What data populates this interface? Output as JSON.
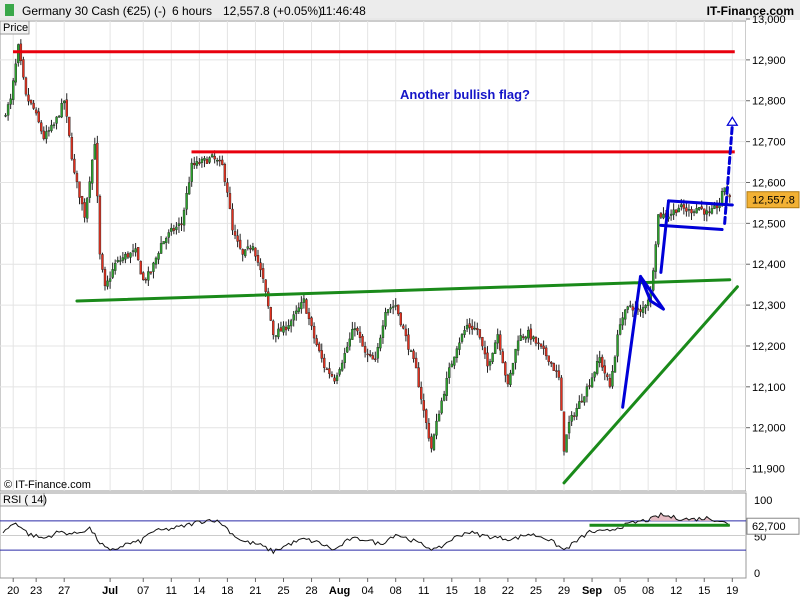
{
  "header": {
    "instrument": "Germany 30 Cash (€25) (-)",
    "timeframe": "6 hours",
    "last_quote": "12,557.8 (+0.05%)",
    "time": "11:46:48",
    "brand": "IT-Finance.com",
    "colors": {
      "up": "#2ca02c",
      "down": "#e0301e"
    }
  },
  "panel_labels": {
    "price": "Price",
    "rsi": "RSI ( 14)"
  },
  "watermark": "© IT-Finance.com",
  "annotation": "Another bullish flag?",
  "chart_data": [
    {
      "type": "candlestick",
      "title": "Germany 30 Cash (€25) (-)",
      "ylim": [
        11850,
        13000
      ],
      "y_ticks": [
        "11,900",
        "12,000",
        "12,100",
        "12,200",
        "12,300",
        "12,400",
        "12,500",
        "12,600",
        "12,700",
        "12,800",
        "12,900",
        "13,000"
      ],
      "y_tick_values": [
        11900,
        12000,
        12100,
        12200,
        12300,
        12400,
        12500,
        12600,
        12700,
        12800,
        12900,
        13000
      ],
      "x_ticks": [
        "20",
        "23",
        "27",
        "Jul",
        "07",
        "11",
        "14",
        "18",
        "21",
        "25",
        "28",
        "Aug",
        "04",
        "08",
        "11",
        "15",
        "18",
        "22",
        "25",
        "29",
        "Sep",
        "05",
        "08",
        "12",
        "15",
        "19"
      ],
      "x_tick_index": [
        4,
        13,
        24,
        42,
        55,
        66,
        77,
        88,
        99,
        110,
        121,
        132,
        143,
        154,
        165,
        176,
        187,
        198,
        209,
        220,
        231,
        242,
        253,
        264,
        275,
        286
      ],
      "last_value_label": "12,557.8",
      "last_value": 12557.8,
      "anchors": [
        [
          0,
          12760
        ],
        [
          3,
          12800
        ],
        [
          6,
          12930
        ],
        [
          9,
          12810
        ],
        [
          12,
          12780
        ],
        [
          16,
          12710
        ],
        [
          20,
          12740
        ],
        [
          24,
          12800
        ],
        [
          28,
          12620
        ],
        [
          32,
          12520
        ],
        [
          36,
          12700
        ],
        [
          38,
          12420
        ],
        [
          40,
          12340
        ],
        [
          44,
          12400
        ],
        [
          48,
          12420
        ],
        [
          52,
          12430
        ],
        [
          55,
          12360
        ],
        [
          58,
          12380
        ],
        [
          62,
          12450
        ],
        [
          66,
          12480
        ],
        [
          70,
          12500
        ],
        [
          74,
          12640
        ],
        [
          78,
          12650
        ],
        [
          82,
          12660
        ],
        [
          86,
          12640
        ],
        [
          88,
          12580
        ],
        [
          90,
          12480
        ],
        [
          94,
          12420
        ],
        [
          98,
          12450
        ],
        [
          102,
          12360
        ],
        [
          106,
          12230
        ],
        [
          110,
          12240
        ],
        [
          114,
          12270
        ],
        [
          118,
          12310
        ],
        [
          122,
          12220
        ],
        [
          126,
          12150
        ],
        [
          130,
          12120
        ],
        [
          134,
          12180
        ],
        [
          138,
          12250
        ],
        [
          142,
          12180
        ],
        [
          146,
          12160
        ],
        [
          150,
          12290
        ],
        [
          154,
          12300
        ],
        [
          158,
          12220
        ],
        [
          162,
          12140
        ],
        [
          165,
          12040
        ],
        [
          168,
          11950
        ],
        [
          171,
          12040
        ],
        [
          175,
          12140
        ],
        [
          178,
          12200
        ],
        [
          182,
          12250
        ],
        [
          186,
          12240
        ],
        [
          190,
          12150
        ],
        [
          194,
          12230
        ],
        [
          198,
          12100
        ],
        [
          202,
          12220
        ],
        [
          206,
          12230
        ],
        [
          210,
          12200
        ],
        [
          214,
          12170
        ],
        [
          218,
          12120
        ],
        [
          220,
          11950
        ],
        [
          222,
          12010
        ],
        [
          226,
          12060
        ],
        [
          230,
          12110
        ],
        [
          234,
          12170
        ],
        [
          238,
          12100
        ],
        [
          242,
          12260
        ],
        [
          246,
          12300
        ],
        [
          250,
          12280
        ],
        [
          254,
          12330
        ],
        [
          257,
          12520
        ],
        [
          261,
          12520
        ],
        [
          265,
          12540
        ],
        [
          269,
          12530
        ],
        [
          273,
          12540
        ],
        [
          277,
          12520
        ],
        [
          281,
          12550
        ],
        [
          283,
          12590
        ],
        [
          285,
          12557.8
        ]
      ],
      "horizontal_lines": [
        {
          "name": "resistance-high",
          "y": 12920,
          "x_from": 0,
          "x_to": 285,
          "color": "#e8000d"
        },
        {
          "name": "resistance-mid",
          "y": 12675,
          "x_from": 70,
          "x_to": 285,
          "color": "#e8000d"
        }
      ],
      "trend_lines": [
        {
          "name": "neckline",
          "points": [
            [
              29,
              12310
            ],
            [
              285,
              12362
            ]
          ],
          "color": "#1a8a1a"
        },
        {
          "name": "rising-support",
          "points": [
            [
              220,
              11865
            ],
            [
              288,
              12345
            ]
          ],
          "color": "#1a8a1a"
        },
        {
          "name": "first-flag-pole",
          "points": [
            [
              243,
              12050
            ],
            [
              250,
              12370
            ]
          ],
          "color": "#0000d8"
        },
        {
          "name": "first-flag-body",
          "points": [
            [
              250,
              12370
            ],
            [
              259,
              12290
            ],
            [
              254,
              12310
            ],
            [
              250,
              12370
            ]
          ],
          "color": "#0000d8"
        },
        {
          "name": "second-flag-pole",
          "points": [
            [
              258,
              12380
            ],
            [
              261,
              12555
            ]
          ],
          "color": "#0000d8"
        },
        {
          "name": "second-flag-top",
          "points": [
            [
              261,
              12555
            ],
            [
              286,
              12545
            ]
          ],
          "color": "#0000d8"
        },
        {
          "name": "second-flag-bottom",
          "points": [
            [
              258,
              12495
            ],
            [
              282,
              12485
            ]
          ],
          "color": "#0000d8"
        },
        {
          "name": "projection",
          "points": [
            [
              283,
              12500
            ],
            [
              286,
              12740
            ]
          ],
          "color": "#0000d8",
          "dashed": true
        }
      ]
    },
    {
      "type": "line",
      "title": "RSI ( 14)",
      "ylim": [
        0,
        100
      ],
      "y_ticks": [
        "0",
        "50",
        "100"
      ],
      "y_tick_values": [
        0,
        50,
        100
      ],
      "last_value_label": "62,700",
      "last_value": 62.7,
      "levels": [
        70,
        30
      ],
      "anchors": [
        [
          0,
          55
        ],
        [
          5,
          68
        ],
        [
          10,
          52
        ],
        [
          16,
          46
        ],
        [
          22,
          55
        ],
        [
          28,
          52
        ],
        [
          34,
          60
        ],
        [
          38,
          40
        ],
        [
          42,
          28
        ],
        [
          48,
          38
        ],
        [
          54,
          42
        ],
        [
          58,
          55
        ],
        [
          64,
          58
        ],
        [
          70,
          62
        ],
        [
          76,
          68
        ],
        [
          82,
          72
        ],
        [
          86,
          66
        ],
        [
          90,
          52
        ],
        [
          94,
          42
        ],
        [
          100,
          38
        ],
        [
          106,
          28
        ],
        [
          112,
          38
        ],
        [
          118,
          45
        ],
        [
          124,
          40
        ],
        [
          130,
          30
        ],
        [
          136,
          45
        ],
        [
          142,
          45
        ],
        [
          148,
          38
        ],
        [
          154,
          52
        ],
        [
          160,
          44
        ],
        [
          166,
          35
        ],
        [
          170,
          30
        ],
        [
          176,
          45
        ],
        [
          182,
          55
        ],
        [
          188,
          50
        ],
        [
          194,
          47
        ],
        [
          200,
          45
        ],
        [
          206,
          52
        ],
        [
          212,
          48
        ],
        [
          216,
          40
        ],
        [
          220,
          30
        ],
        [
          224,
          40
        ],
        [
          230,
          55
        ],
        [
          236,
          55
        ],
        [
          242,
          62
        ],
        [
          248,
          68
        ],
        [
          254,
          72
        ],
        [
          258,
          78
        ],
        [
          264,
          74
        ],
        [
          270,
          72
        ],
        [
          276,
          74
        ],
        [
          282,
          70
        ],
        [
          285,
          62.7
        ]
      ],
      "support_line": {
        "points": [
          [
            230,
            64
          ],
          [
            285,
            64
          ]
        ],
        "color": "#1a8a1a"
      }
    }
  ]
}
